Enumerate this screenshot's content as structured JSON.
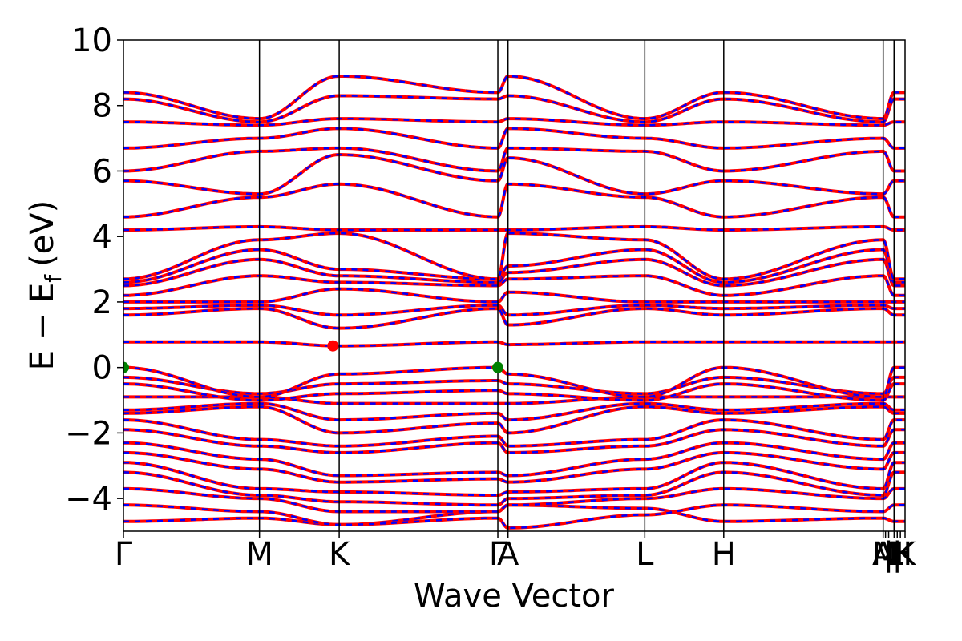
{
  "chart_data": {
    "type": "line",
    "xlabel": "Wave Vector",
    "ylabel": "E − E",
    "ylabel_sub": "f",
    "ylabel_unit": "(eV)",
    "ylim": [
      -5,
      10
    ],
    "yticks": [
      -4,
      -2,
      0,
      2,
      4,
      6,
      8,
      10
    ],
    "ytick_labels": [
      "−4",
      "−2",
      "0",
      "2",
      "4",
      "6",
      "8",
      "10"
    ],
    "xlim": [
      0,
      1
    ],
    "kpoints": [
      {
        "label": "Γ",
        "x": 0.0
      },
      {
        "label": "M",
        "x": 0.174
      },
      {
        "label": "K",
        "x": 0.276
      },
      {
        "label": "Γ",
        "x": 0.479
      },
      {
        "label": "A",
        "x": 0.492
      },
      {
        "label": "L",
        "x": 0.667
      },
      {
        "label": "H",
        "x": 0.768
      },
      {
        "label": "A",
        "x": 0.972
      },
      {
        "label": "L",
        "x": 0.986
      },
      {
        "label": "M",
        "x": 0.986
      },
      {
        "label": "H",
        "x": 1.0
      },
      {
        "label": "K",
        "x": 1.0
      }
    ],
    "kpoint_tick_labels": [
      {
        "text": "Γ",
        "x": 0.0
      },
      {
        "text": "M",
        "x": 0.174
      },
      {
        "text": "K",
        "x": 0.276
      },
      {
        "text": "Γ",
        "x": 0.479
      },
      {
        "text": "A",
        "x": 0.492
      },
      {
        "text": "L",
        "x": 0.667
      },
      {
        "text": "H",
        "x": 0.768
      },
      {
        "text": "A",
        "x": 0.972
      },
      {
        "text": "M",
        "x": 0.975
      },
      {
        "text": "|",
        "x": 0.979
      },
      {
        "text": "L",
        "x": 0.986
      },
      {
        "text": "|",
        "x": 0.99
      },
      {
        "text": "H",
        "x": 0.994
      },
      {
        "text": "K",
        "x": 1.0
      }
    ],
    "segment_boundaries": [
      0.0,
      0.174,
      0.276,
      0.479,
      0.492,
      0.667,
      0.768,
      0.972,
      0.986,
      1.0
    ],
    "series": [
      {
        "style": "solid",
        "color": "#ff0000"
      },
      {
        "style": "dashed",
        "color": "#0000ff"
      }
    ],
    "bands": [
      [
        -4.7,
        -4.6,
        -4.8,
        -4.4,
        -4.2,
        -4.3,
        -4.7,
        -4.6,
        -4.7,
        -4.7
      ],
      [
        -4.2,
        -4.4,
        -4.8,
        -4.6,
        -4.9,
        -4.5,
        -4.2,
        -4.4,
        -4.2,
        -4.2
      ],
      [
        -3.7,
        -4.0,
        -4.4,
        -4.4,
        -4.2,
        -4.0,
        -3.7,
        -4.0,
        -3.7,
        -3.7
      ],
      [
        -3.2,
        -3.9,
        -4.1,
        -4.2,
        -4.0,
        -3.9,
        -3.2,
        -3.9,
        -3.2,
        -3.2
      ],
      [
        -2.9,
        -3.7,
        -3.8,
        -3.9,
        -3.8,
        -3.7,
        -2.9,
        -3.7,
        -2.9,
        -2.9
      ],
      [
        -2.6,
        -3.1,
        -3.5,
        -3.4,
        -3.5,
        -3.1,
        -2.6,
        -3.1,
        -2.6,
        -2.6
      ],
      [
        -2.3,
        -2.8,
        -3.3,
        -3.2,
        -3.3,
        -2.8,
        -2.3,
        -2.8,
        -2.3,
        -2.3
      ],
      [
        -1.9,
        -2.4,
        -2.6,
        -2.3,
        -2.6,
        -2.4,
        -1.9,
        -2.4,
        -1.9,
        -1.9
      ],
      [
        -1.6,
        -2.2,
        -2.4,
        -2.1,
        -2.4,
        -2.2,
        -1.6,
        -2.2,
        -1.6,
        -1.6
      ],
      [
        -1.4,
        -1.2,
        -2.0,
        -1.7,
        -2.0,
        -1.2,
        -1.4,
        -1.2,
        -1.4,
        -1.4
      ],
      [
        -1.3,
        -1.1,
        -1.6,
        -1.4,
        -1.6,
        -1.1,
        -1.3,
        -1.1,
        -1.3,
        -1.3
      ],
      [
        -0.9,
        -0.9,
        -1.1,
        -1.1,
        -1.1,
        -0.9,
        -0.9,
        -0.9,
        -0.9,
        -0.9
      ],
      [
        -0.5,
        -1.0,
        -0.8,
        -0.7,
        -0.8,
        -1.0,
        -0.5,
        -1.0,
        -0.5,
        -0.5
      ],
      [
        -0.3,
        -0.8,
        -0.5,
        -0.4,
        -0.5,
        -0.8,
        -0.3,
        -0.8,
        -0.3,
        -0.3
      ],
      [
        0.0,
        -0.9,
        -0.2,
        0.0,
        -0.2,
        -0.9,
        0.0,
        -0.9,
        0.0,
        0.0
      ],
      [
        0.78,
        0.78,
        0.66,
        0.78,
        0.7,
        0.78,
        0.78,
        0.78,
        0.78,
        0.78
      ],
      [
        1.6,
        1.8,
        1.2,
        1.8,
        1.3,
        1.8,
        1.6,
        1.8,
        1.6,
        1.6
      ],
      [
        1.8,
        1.9,
        1.6,
        1.9,
        1.6,
        1.9,
        1.8,
        1.9,
        1.8,
        1.8
      ],
      [
        2.0,
        2.0,
        2.4,
        2.0,
        2.3,
        2.0,
        2.0,
        2.0,
        2.0,
        2.0
      ],
      [
        2.2,
        2.8,
        2.6,
        2.5,
        2.7,
        2.8,
        2.2,
        2.8,
        2.2,
        2.2
      ],
      [
        2.5,
        3.3,
        2.8,
        2.6,
        2.9,
        3.3,
        2.5,
        3.3,
        2.5,
        2.5
      ],
      [
        2.6,
        3.6,
        3.0,
        2.7,
        3.1,
        3.6,
        2.6,
        3.6,
        2.6,
        2.6
      ],
      [
        2.7,
        3.9,
        4.1,
        2.7,
        4.1,
        3.9,
        2.7,
        3.9,
        2.7,
        2.7
      ],
      [
        4.2,
        4.3,
        4.2,
        4.2,
        4.2,
        4.3,
        4.2,
        4.3,
        4.2,
        4.2
      ],
      [
        4.6,
        5.2,
        5.6,
        4.6,
        5.6,
        5.2,
        4.6,
        5.2,
        4.6,
        4.6
      ],
      [
        5.7,
        5.3,
        6.5,
        5.7,
        6.4,
        5.3,
        5.7,
        5.3,
        5.7,
        5.7
      ],
      [
        6.0,
        6.6,
        6.7,
        6.0,
        6.7,
        6.6,
        6.0,
        6.6,
        6.0,
        6.0
      ],
      [
        6.7,
        7.0,
        7.3,
        6.7,
        7.3,
        7.0,
        6.7,
        7.0,
        6.7,
        6.7
      ],
      [
        7.5,
        7.4,
        7.6,
        7.5,
        7.6,
        7.4,
        7.5,
        7.4,
        7.5,
        7.5
      ],
      [
        8.2,
        7.5,
        8.3,
        8.2,
        8.3,
        7.5,
        8.2,
        7.5,
        8.2,
        8.2
      ],
      [
        8.4,
        7.6,
        8.9,
        8.4,
        8.9,
        7.6,
        8.4,
        7.6,
        8.4,
        8.4
      ]
    ],
    "markers": [
      {
        "label": "VBM",
        "x": 0.0,
        "y": 0.0,
        "color": "#008000"
      },
      {
        "label": "VBM",
        "x": 0.479,
        "y": 0.0,
        "color": "#008000"
      },
      {
        "label": "CBM",
        "x": 0.268,
        "y": 0.66,
        "color": "#ff0000"
      }
    ],
    "grid": false,
    "legend": "none"
  }
}
